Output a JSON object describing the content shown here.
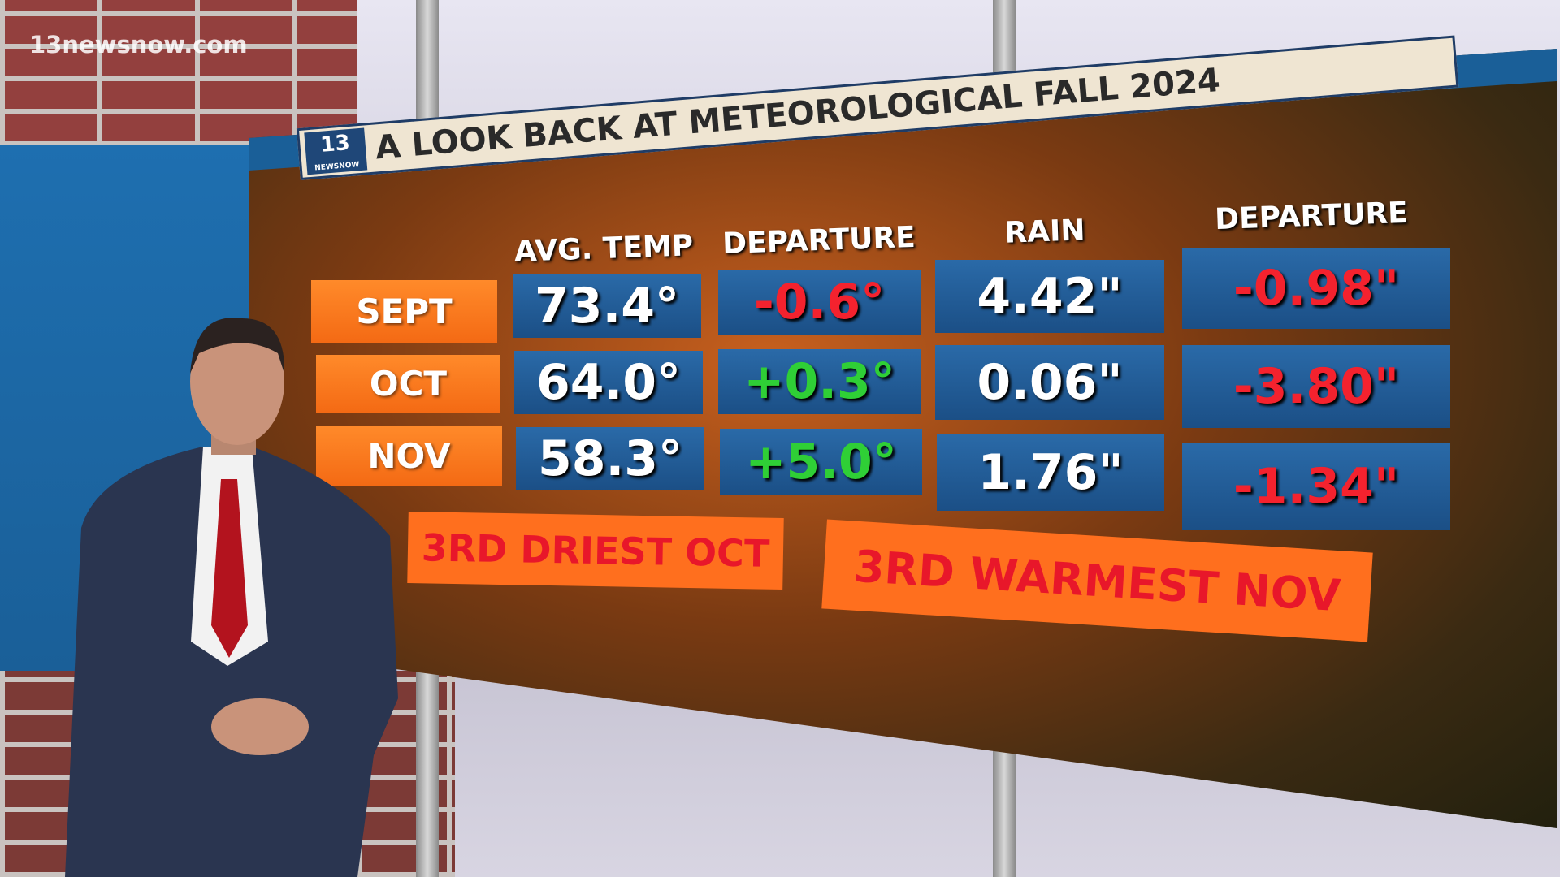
{
  "watermark": "13newsnow.com",
  "logo": {
    "number": "13",
    "sub": "NEWSNOW"
  },
  "title": "A LOOK BACK AT METEOROLOGICAL FALL 2024",
  "headers": [
    "AVG. TEMP",
    "DEPARTURE",
    "RAIN",
    "DEPARTURE"
  ],
  "rows": [
    {
      "month": "SEPT",
      "avg_temp": "73.4°",
      "temp_departure": "-0.6°",
      "rain": "4.42\"",
      "rain_departure": "-0.98\""
    },
    {
      "month": "OCT",
      "avg_temp": "64.0°",
      "temp_departure": "+0.3°",
      "rain": "0.06\"",
      "rain_departure": "-3.80\""
    },
    {
      "month": "NOV",
      "avg_temp": "58.3°",
      "temp_departure": "+5.0°",
      "rain": "1.76\"",
      "rain_departure": "-1.34\""
    }
  ],
  "banners": [
    "3RD DRIEST OCT",
    "3RD WARMEST NOV"
  ],
  "colors": {
    "negative": "#f4222e",
    "positive": "#2fcf36",
    "month_label": "#f46a14",
    "value_box": "#1b4f86"
  }
}
